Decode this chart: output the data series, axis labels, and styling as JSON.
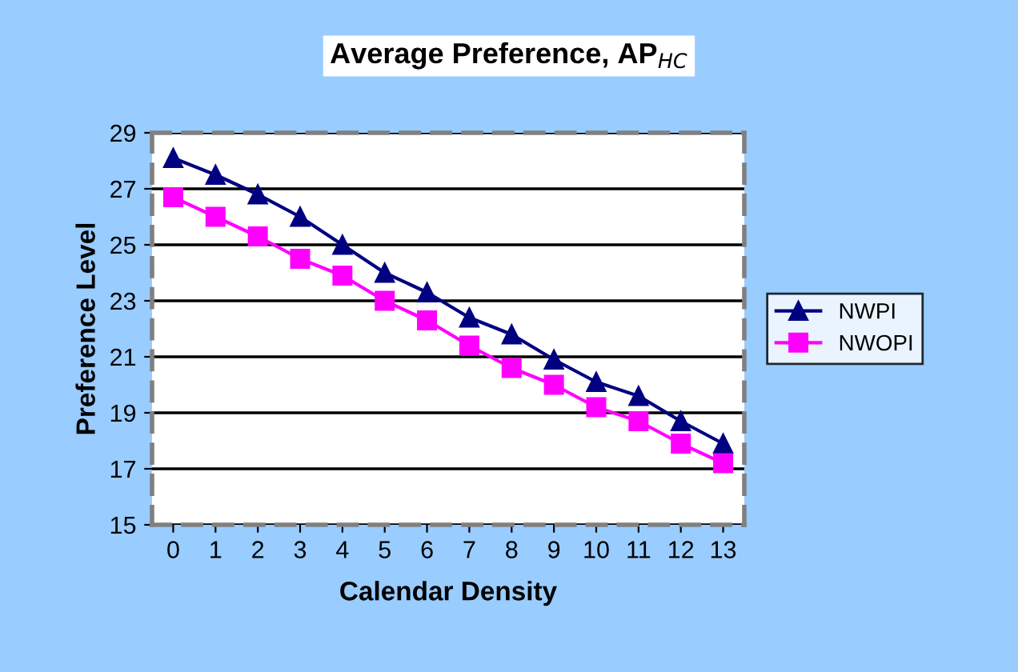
{
  "chart_data": {
    "type": "line",
    "title": "Average Preference, AP$_{HC}$",
    "xlabel": "Calendar Density",
    "ylabel": "Preference Level",
    "categories": [
      "0",
      "1",
      "2",
      "3",
      "4",
      "5",
      "6",
      "7",
      "8",
      "9",
      "10",
      "11",
      "12",
      "13"
    ],
    "series": [
      {
        "name": "NWPI",
        "color": "#000080",
        "marker": "triangle",
        "values": [
          28.1,
          27.5,
          26.8,
          26.0,
          25.0,
          24.0,
          23.3,
          22.4,
          21.8,
          20.9,
          20.1,
          19.6,
          18.7,
          17.9
        ]
      },
      {
        "name": "NWOPI",
        "color": "#ff00ff",
        "marker": "square",
        "values": [
          26.7,
          26.0,
          25.3,
          24.5,
          23.9,
          23.0,
          22.3,
          21.4,
          20.6,
          20.0,
          19.2,
          18.7,
          17.9,
          17.2
        ]
      }
    ],
    "ylim": [
      15,
      29
    ],
    "yticks": [
      15,
      17,
      19,
      21,
      23,
      25,
      27,
      29
    ],
    "grid": "y",
    "legend": "right",
    "line_style": "solid"
  }
}
